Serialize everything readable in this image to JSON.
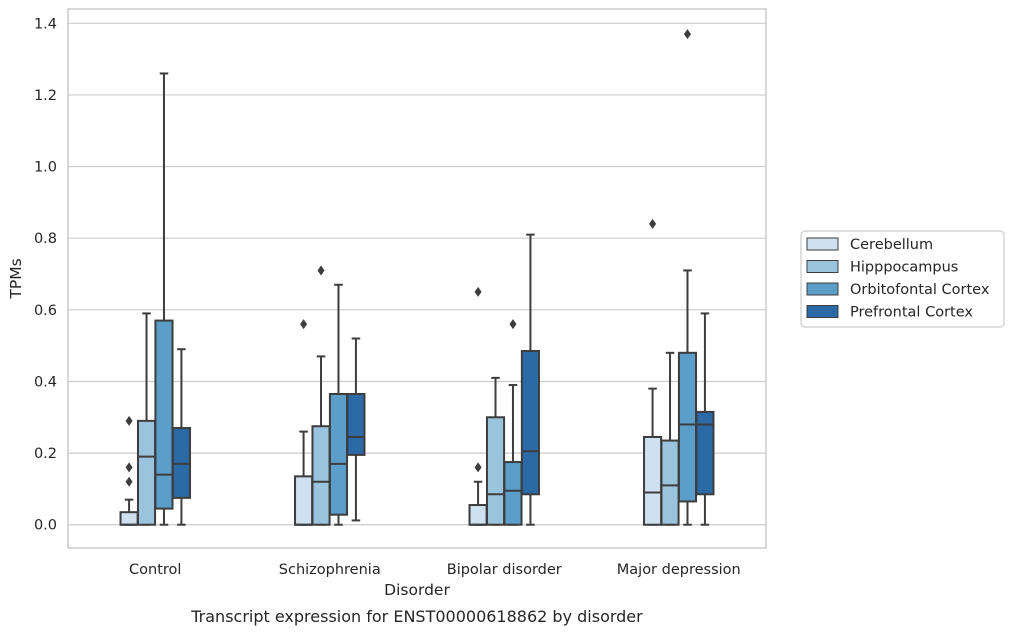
{
  "chart_data": {
    "type": "box",
    "xlabel": "Disorder",
    "ylabel": "TPMs",
    "caption": "Transcript expression for ENST00000618862 by disorder",
    "ylim": [
      -0.065,
      1.44
    ],
    "yticks": [
      0.0,
      0.2,
      0.4,
      0.6,
      0.8,
      1.0,
      1.2,
      1.4
    ],
    "ytick_labels": [
      "0.0",
      "0.2",
      "0.4",
      "0.6",
      "0.8",
      "1.0",
      "1.2",
      "1.4"
    ],
    "grid": "horizontal",
    "legend_position": "right",
    "categories": [
      "Control",
      "Schizophrenia",
      "Bipolar disorder",
      "Major depression"
    ],
    "series": [
      {
        "name": "Cerebellum",
        "color": "#cfe0f0",
        "boxes": [
          {
            "whisker_low": 0.0,
            "q1": 0.0,
            "median": 0.0,
            "q3": 0.035,
            "whisker_high": 0.07,
            "outliers": [
              0.12,
              0.16,
              0.29
            ]
          },
          {
            "whisker_low": 0.0,
            "q1": 0.0,
            "median": 0.0,
            "q3": 0.135,
            "whisker_high": 0.26,
            "outliers": [
              0.56
            ]
          },
          {
            "whisker_low": 0.0,
            "q1": 0.0,
            "median": 0.0,
            "q3": 0.055,
            "whisker_high": 0.12,
            "outliers": [
              0.16,
              0.65
            ]
          },
          {
            "whisker_low": 0.0,
            "q1": 0.0,
            "median": 0.09,
            "q3": 0.245,
            "whisker_high": 0.38,
            "outliers": [
              0.84
            ]
          }
        ]
      },
      {
        "name": "Hipppocampus",
        "color": "#9ac3dd",
        "boxes": [
          {
            "whisker_low": 0.0,
            "q1": 0.0,
            "median": 0.19,
            "q3": 0.29,
            "whisker_high": 0.59,
            "outliers": []
          },
          {
            "whisker_low": 0.0,
            "q1": 0.0,
            "median": 0.12,
            "q3": 0.275,
            "whisker_high": 0.47,
            "outliers": [
              0.71
            ]
          },
          {
            "whisker_low": 0.0,
            "q1": 0.0,
            "median": 0.085,
            "q3": 0.3,
            "whisker_high": 0.41,
            "outliers": []
          },
          {
            "whisker_low": 0.0,
            "q1": 0.0,
            "median": 0.11,
            "q3": 0.235,
            "whisker_high": 0.48,
            "outliers": []
          }
        ]
      },
      {
        "name": "Orbitofontal Cortex",
        "color": "#5a9ec9",
        "boxes": [
          {
            "whisker_low": 0.0,
            "q1": 0.045,
            "median": 0.14,
            "q3": 0.57,
            "whisker_high": 1.26,
            "outliers": []
          },
          {
            "whisker_low": 0.0,
            "q1": 0.028,
            "median": 0.17,
            "q3": 0.365,
            "whisker_high": 0.67,
            "outliers": []
          },
          {
            "whisker_low": 0.0,
            "q1": 0.0,
            "median": 0.095,
            "q3": 0.175,
            "whisker_high": 0.39,
            "outliers": [
              0.56
            ]
          },
          {
            "whisker_low": 0.0,
            "q1": 0.065,
            "median": 0.28,
            "q3": 0.48,
            "whisker_high": 0.71,
            "outliers": [
              1.37
            ]
          }
        ]
      },
      {
        "name": "Prefrontal Cortex",
        "color": "#2b6aa6",
        "boxes": [
          {
            "whisker_low": 0.0,
            "q1": 0.075,
            "median": 0.17,
            "q3": 0.27,
            "whisker_high": 0.49,
            "outliers": []
          },
          {
            "whisker_low": 0.012,
            "q1": 0.195,
            "median": 0.245,
            "q3": 0.365,
            "whisker_high": 0.52,
            "outliers": []
          },
          {
            "whisker_low": 0.0,
            "q1": 0.085,
            "median": 0.205,
            "q3": 0.485,
            "whisker_high": 0.81,
            "outliers": []
          },
          {
            "whisker_low": 0.0,
            "q1": 0.085,
            "median": 0.28,
            "q3": 0.315,
            "whisker_high": 0.59,
            "outliers": []
          }
        ]
      }
    ]
  }
}
